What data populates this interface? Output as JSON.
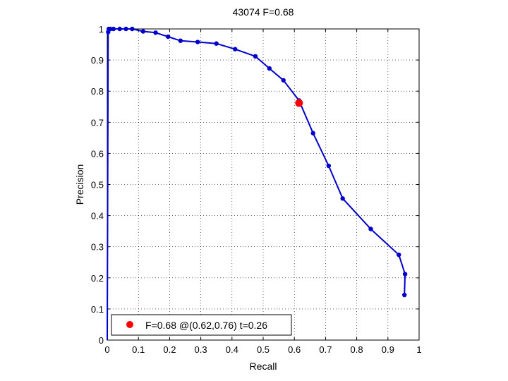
{
  "chart_data": {
    "type": "line",
    "title": "43074 F=0.68",
    "xlabel": "Recall",
    "ylabel": "Precision",
    "xlim": [
      0,
      1
    ],
    "ylim": [
      0,
      1
    ],
    "xticks": [
      "0",
      "0.1",
      "0.2",
      "0.3",
      "0.4",
      "0.5",
      "0.6",
      "0.7",
      "0.8",
      "0.9",
      "1"
    ],
    "yticks": [
      "0",
      "0.1",
      "0.2",
      "0.3",
      "0.4",
      "0.5",
      "0.6",
      "0.7",
      "0.8",
      "0.9",
      "1"
    ],
    "grid": true,
    "legend_position": "bottom-left",
    "series": [
      {
        "name": "",
        "color": "#0000cc",
        "x": [
          0,
          0.003,
          0.005,
          0.01,
          0.02,
          0.04,
          0.06,
          0.08,
          0.115,
          0.155,
          0.195,
          0.235,
          0.29,
          0.35,
          0.41,
          0.475,
          0.52,
          0.565,
          0.615,
          0.66,
          0.71,
          0.755,
          0.845,
          0.935,
          0.955,
          0.953
        ],
        "y": [
          0,
          0.99,
          1.0,
          1.0,
          1.0,
          1.0,
          1.0,
          1.0,
          0.992,
          0.988,
          0.975,
          0.962,
          0.958,
          0.953,
          0.935,
          0.912,
          0.873,
          0.835,
          0.77,
          0.665,
          0.56,
          0.455,
          0.357,
          0.274,
          0.212,
          0.145
        ]
      }
    ],
    "highlight": {
      "x": 0.615,
      "y": 0.762,
      "color": "#ff0000",
      "label": "F=0.68 @(0.62,0.76) t=0.26"
    }
  }
}
